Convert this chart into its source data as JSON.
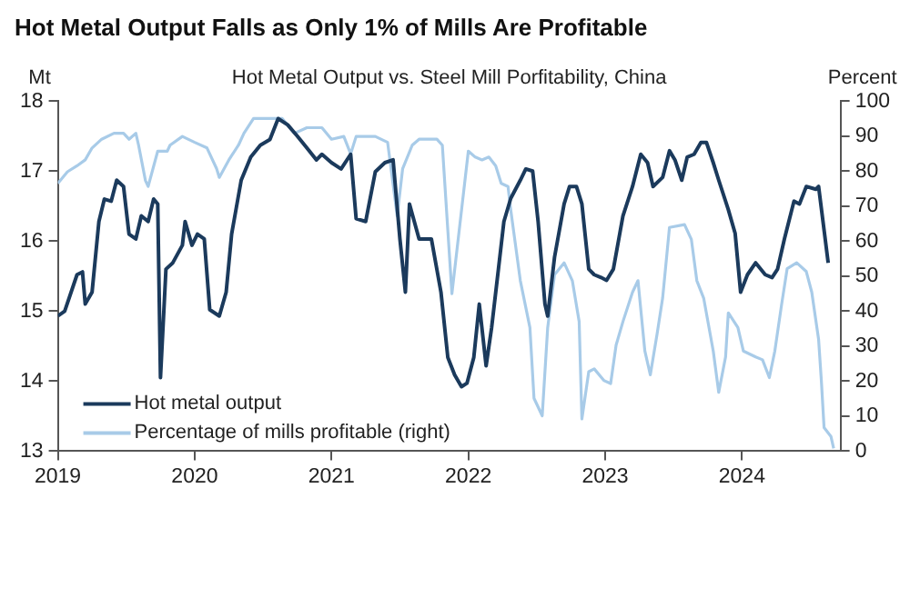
{
  "chart_data": {
    "type": "line",
    "title": "Hot Metal Output Falls as Only 1% of Mills Are Profitable",
    "subtitle": "Hot Metal Output vs. Steel Mill Porfitability, China",
    "ylabel": "Mt",
    "y2label": "Percent",
    "xlim": [
      2019,
      2024.72
    ],
    "xticks": [
      2019,
      2020,
      2021,
      2022,
      2023,
      2024
    ],
    "ylim": [
      13,
      18
    ],
    "yticks": [
      13,
      14,
      15,
      16,
      17,
      18
    ],
    "y2lim": [
      0,
      100
    ],
    "y2ticks": [
      0,
      10,
      20,
      30,
      40,
      50,
      60,
      70,
      80,
      90,
      100
    ],
    "grid": false,
    "legend": "bottom left",
    "marker": "none",
    "line_style": "solid",
    "series": [
      {
        "name": "Hot metal output",
        "color": "#1b3a5c",
        "x": [
          2019.0,
          2019.05,
          2019.14,
          2019.18,
          2019.2,
          2019.25,
          2019.3,
          2019.34,
          2019.39,
          2019.43,
          2019.48,
          2019.52,
          2019.57,
          2019.61,
          2019.66,
          2019.7,
          2019.73,
          2019.75,
          2019.79,
          2019.84,
          2019.91,
          2019.93,
          2019.98,
          2020.02,
          2020.07,
          2020.11,
          2020.18,
          2020.23,
          2020.27,
          2020.34,
          2020.41,
          2020.48,
          2020.55,
          2020.61,
          2020.68,
          2020.75,
          2020.82,
          2020.89,
          2020.93,
          2021.0,
          2021.07,
          2021.14,
          2021.18,
          2021.25,
          2021.32,
          2021.39,
          2021.45,
          2021.5,
          2021.54,
          2021.57,
          2021.64,
          2021.73,
          2021.8,
          2021.85,
          2021.9,
          2021.95,
          2021.99,
          2022.04,
          2022.08,
          2022.13,
          2022.17,
          2022.22,
          2022.26,
          2022.31,
          2022.38,
          2022.42,
          2022.47,
          2022.51,
          2022.56,
          2022.58,
          2022.63,
          2022.7,
          2022.74,
          2022.79,
          2022.83,
          2022.88,
          2022.92,
          2022.97,
          2023.01,
          2023.06,
          2023.13,
          2023.2,
          2023.26,
          2023.31,
          2023.35,
          2023.42,
          2023.47,
          2023.51,
          2023.56,
          2023.6,
          2023.65,
          2023.7,
          2023.74,
          2023.79,
          2023.83,
          2023.9,
          2023.95,
          2023.99,
          2024.04,
          2024.1,
          2024.17,
          2024.22,
          2024.26,
          2024.31,
          2024.38,
          2024.42,
          2024.47,
          2024.54,
          2024.56,
          2024.63
        ],
        "values": [
          14.93,
          15.0,
          15.52,
          15.56,
          15.1,
          15.27,
          16.28,
          16.6,
          16.57,
          16.87,
          16.78,
          16.1,
          16.03,
          16.36,
          16.28,
          16.6,
          16.53,
          14.05,
          15.6,
          15.69,
          15.94,
          16.28,
          15.94,
          16.1,
          16.03,
          15.02,
          14.93,
          15.27,
          16.1,
          16.87,
          17.2,
          17.37,
          17.45,
          17.75,
          17.66,
          17.5,
          17.33,
          17.16,
          17.24,
          17.12,
          17.03,
          17.24,
          16.32,
          16.28,
          16.99,
          17.12,
          17.16,
          16.03,
          15.27,
          16.53,
          16.03,
          16.03,
          15.27,
          14.34,
          14.09,
          13.92,
          13.97,
          14.34,
          15.1,
          14.22,
          14.76,
          15.6,
          16.28,
          16.61,
          16.87,
          17.03,
          17.0,
          16.28,
          15.1,
          14.93,
          15.77,
          16.53,
          16.78,
          16.78,
          16.53,
          15.6,
          15.52,
          15.48,
          15.44,
          15.6,
          16.36,
          16.78,
          17.24,
          17.12,
          16.78,
          16.91,
          17.29,
          17.16,
          16.87,
          17.2,
          17.24,
          17.41,
          17.41,
          17.12,
          16.87,
          16.45,
          16.11,
          15.27,
          15.52,
          15.69,
          15.52,
          15.48,
          15.6,
          16.03,
          16.57,
          16.53,
          16.78,
          16.74,
          16.78,
          15.69
        ]
      },
      {
        "name": "Percentage of mills profitable (right)",
        "color": "#a8cbe8",
        "axis": "y2",
        "x": [
          2019.0,
          2019.07,
          2019.14,
          2019.2,
          2019.25,
          2019.32,
          2019.41,
          2019.48,
          2019.52,
          2019.57,
          2019.59,
          2019.64,
          2019.66,
          2019.73,
          2019.8,
          2019.82,
          2019.91,
          2020.0,
          2020.09,
          2020.16,
          2020.18,
          2020.25,
          2020.32,
          2020.36,
          2020.43,
          2020.55,
          2020.64,
          2020.73,
          2020.82,
          2020.93,
          2021.0,
          2021.09,
          2021.14,
          2021.18,
          2021.32,
          2021.41,
          2021.48,
          2021.52,
          2021.59,
          2021.64,
          2021.77,
          2021.81,
          2021.88,
          2022.0,
          2022.05,
          2022.1,
          2022.15,
          2022.2,
          2022.24,
          2022.29,
          2022.31,
          2022.38,
          2022.45,
          2022.48,
          2022.54,
          2022.58,
          2022.63,
          2022.7,
          2022.76,
          2022.81,
          2022.83,
          2022.88,
          2022.92,
          2022.99,
          2023.04,
          2023.08,
          2023.13,
          2023.2,
          2023.24,
          2023.29,
          2023.33,
          2023.38,
          2023.42,
          2023.47,
          2023.58,
          2023.63,
          2023.67,
          2023.72,
          2023.79,
          2023.83,
          2023.88,
          2023.9,
          2023.97,
          2024.01,
          2024.1,
          2024.15,
          2024.2,
          2024.24,
          2024.29,
          2024.33,
          2024.4,
          2024.47,
          2024.51,
          2024.56,
          2024.58,
          2024.6,
          2024.65,
          2024.67
        ],
        "values": [
          76.5,
          79.8,
          81.5,
          83.2,
          86.6,
          89.1,
          90.8,
          90.8,
          89.1,
          90.8,
          87.4,
          77.3,
          75.6,
          85.7,
          85.7,
          87.4,
          89.9,
          88.2,
          86.6,
          80.7,
          78.2,
          83.2,
          87.4,
          90.8,
          95.0,
          95.0,
          95.0,
          90.8,
          92.4,
          92.4,
          89.1,
          89.9,
          84.9,
          89.9,
          89.9,
          88.2,
          67.2,
          80.7,
          87.4,
          89.1,
          89.1,
          87.4,
          45,
          85.7,
          84.0,
          83.2,
          84.0,
          81.5,
          76.5,
          75.6,
          68.9,
          48.7,
          35.3,
          15.1,
          10.1,
          35.3,
          50.4,
          53.8,
          48.7,
          37.0,
          9.2,
          22.7,
          23.5,
          20.2,
          19.3,
          30.3,
          37.0,
          45.4,
          48.7,
          28.6,
          21.8,
          33.6,
          43.7,
          63.9,
          64.7,
          60.5,
          48.7,
          43.7,
          28.6,
          16.8,
          26.9,
          39.5,
          35.3,
          28.6,
          26.9,
          26.1,
          21.0,
          28.6,
          42.0,
          52.1,
          53.8,
          51.3,
          45.4,
          31.9,
          20.2,
          6.7,
          4.2,
          0.8
        ]
      }
    ]
  }
}
